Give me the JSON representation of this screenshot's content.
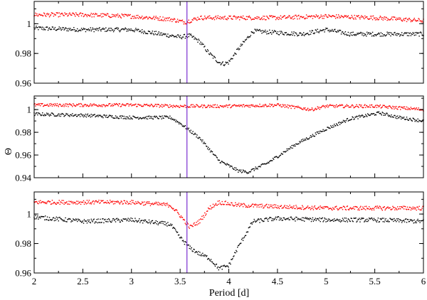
{
  "chart_data": {
    "type": "scatter",
    "panel_count": 3,
    "xlabel": "Period [d]",
    "ylabel": "Θ",
    "xlim": [
      2,
      6
    ],
    "x_ticks": [
      "2",
      "2.5",
      "3",
      "3.5",
      "4",
      "4.5",
      "5",
      "5.5",
      "6"
    ],
    "x_tick_values": [
      2,
      2.5,
      3,
      3.5,
      4,
      4.5,
      5,
      5.5,
      6
    ],
    "marker_line": {
      "x": 3.57,
      "color": "#7a2fd0"
    },
    "series_colors": {
      "red": "#ff0000",
      "black": "#000000"
    },
    "panels": [
      {
        "ylim": [
          0.96,
          1.015
        ],
        "y_ticks": [
          "0.96",
          "0.98",
          "1"
        ],
        "y_tick_values": [
          0.96,
          0.98,
          1.0
        ],
        "red_series": {
          "x": [
            2.0,
            2.5,
            3.0,
            3.4,
            3.55,
            3.7,
            4.0,
            4.5,
            5.0,
            5.5,
            6.0
          ],
          "y": [
            1.006,
            1.006,
            1.005,
            1.003,
            1.001,
            1.004,
            1.004,
            1.004,
            1.005,
            1.004,
            1.002
          ]
        },
        "black_series": {
          "x": [
            2.0,
            2.5,
            3.0,
            3.3,
            3.5,
            3.6,
            3.7,
            3.8,
            3.9,
            3.95,
            4.0,
            4.1,
            4.25,
            4.5,
            4.75,
            5.0,
            5.25,
            5.5,
            5.75,
            6.0
          ],
          "y": [
            0.997,
            0.996,
            0.996,
            0.993,
            0.991,
            0.992,
            0.988,
            0.98,
            0.974,
            0.973,
            0.974,
            0.983,
            0.995,
            0.994,
            0.993,
            0.996,
            0.993,
            0.993,
            0.993,
            0.993
          ]
        }
      },
      {
        "ylim": [
          0.94,
          1.012
        ],
        "y_ticks": [
          "0.94",
          "0.96",
          "0.98",
          "1"
        ],
        "y_tick_values": [
          0.94,
          0.96,
          0.98,
          1.0
        ],
        "red_series": {
          "x": [
            2.0,
            2.5,
            3.0,
            3.5,
            4.0,
            4.5,
            4.85,
            5.0,
            5.5,
            6.0
          ],
          "y": [
            1.004,
            1.004,
            1.004,
            1.003,
            1.003,
            1.004,
            1.0,
            1.003,
            1.003,
            1.0
          ]
        },
        "black_series": {
          "x": [
            2.0,
            2.5,
            3.0,
            3.4,
            3.5,
            3.7,
            3.9,
            4.1,
            4.2,
            4.4,
            4.7,
            5.0,
            5.25,
            5.55,
            5.75,
            6.0
          ],
          "y": [
            0.996,
            0.995,
            0.993,
            0.993,
            0.988,
            0.975,
            0.955,
            0.946,
            0.945,
            0.953,
            0.97,
            0.983,
            0.992,
            0.997,
            0.993,
            0.99
          ]
        }
      },
      {
        "ylim": [
          0.96,
          1.015
        ],
        "y_ticks": [
          "0.96",
          "0.98",
          "1"
        ],
        "y_tick_values": [
          0.96,
          0.98,
          1.0
        ],
        "red_series": {
          "x": [
            2.0,
            2.5,
            3.0,
            3.4,
            3.5,
            3.6,
            3.7,
            3.8,
            3.9,
            4.1,
            4.5,
            5.0,
            5.5,
            6.0
          ],
          "y": [
            1.008,
            1.008,
            1.008,
            1.006,
            0.999,
            0.991,
            0.995,
            1.004,
            1.008,
            1.006,
            1.005,
            1.004,
            1.004,
            1.004
          ]
        },
        "black_series": {
          "x": [
            2.0,
            2.5,
            3.0,
            3.4,
            3.5,
            3.6,
            3.7,
            3.8,
            3.9,
            4.0,
            4.1,
            4.25,
            4.5,
            5.0,
            5.5,
            6.0
          ],
          "y": [
            0.998,
            0.995,
            0.996,
            0.993,
            0.984,
            0.977,
            0.973,
            0.97,
            0.963,
            0.965,
            0.978,
            0.995,
            0.997,
            0.996,
            0.996,
            0.995
          ]
        }
      }
    ]
  }
}
